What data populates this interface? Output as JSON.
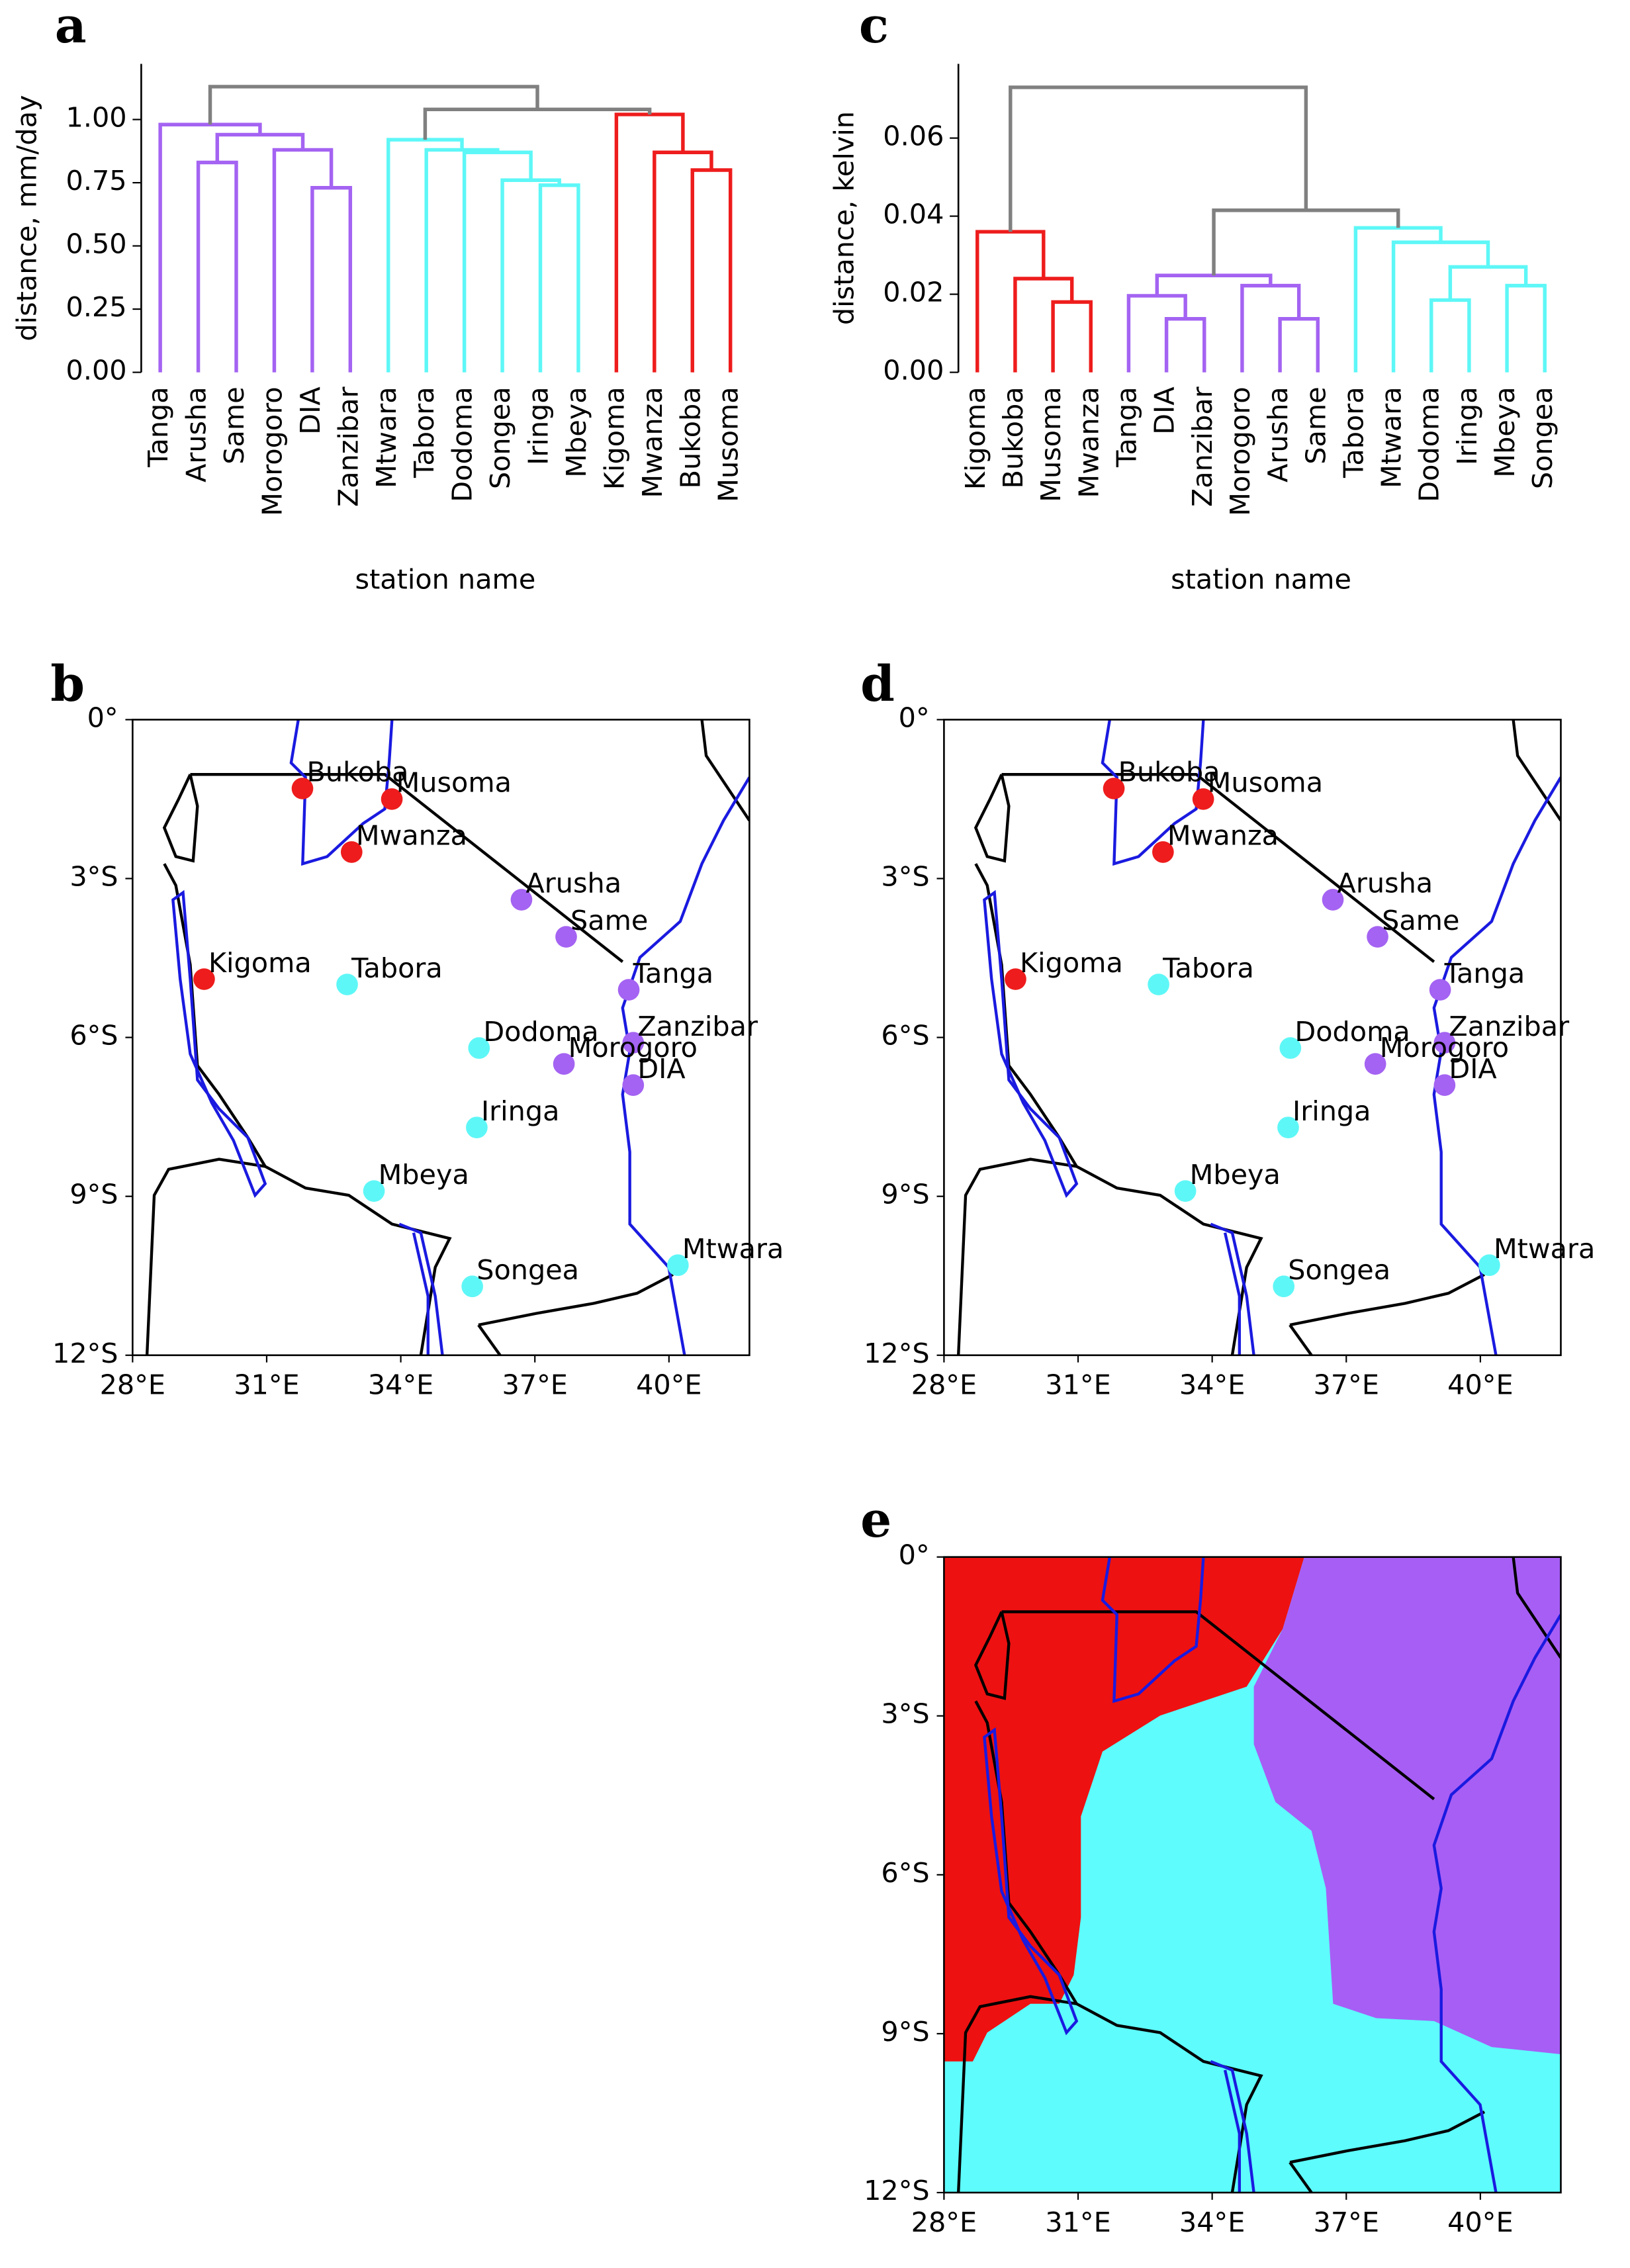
{
  "chart_data": [
    {
      "type": "dendrogram",
      "panel_label": "a",
      "ylabel": "distance, mm/day",
      "xlabel": "station name",
      "leaves": [
        "Tanga",
        "Arusha",
        "Same",
        "Morogoro",
        "DIA",
        "Zanzibar",
        "Mtwara",
        "Tabora",
        "Dodoma",
        "Songea",
        "Iringa",
        "Mbeya",
        "Kigoma",
        "Mwanza",
        "Bukoba",
        "Musoma"
      ],
      "merges": [
        {
          "children": [
            1,
            2
          ],
          "height": 0.83,
          "color": "#a463f2"
        },
        {
          "children": [
            4,
            5
          ],
          "height": 0.73,
          "color": "#a463f2"
        },
        {
          "children": [
            3,
            17
          ],
          "height": 0.88,
          "color": "#a463f2"
        },
        {
          "children": [
            16,
            18
          ],
          "height": 0.94,
          "color": "#a463f2"
        },
        {
          "children": [
            0,
            19
          ],
          "height": 0.98,
          "color": "#a463f2"
        },
        {
          "children": [
            10,
            11
          ],
          "height": 0.74,
          "color": "#5ef7f7"
        },
        {
          "children": [
            9,
            21
          ],
          "height": 0.76,
          "color": "#5ef7f7"
        },
        {
          "children": [
            8,
            22
          ],
          "height": 0.87,
          "color": "#5ef7f7"
        },
        {
          "children": [
            7,
            23
          ],
          "height": 0.88,
          "color": "#5ef7f7"
        },
        {
          "children": [
            6,
            24
          ],
          "height": 0.92,
          "color": "#5ef7f7"
        },
        {
          "children": [
            14,
            15
          ],
          "height": 0.8,
          "color": "#ee1c1c"
        },
        {
          "children": [
            13,
            26
          ],
          "height": 0.87,
          "color": "#ee1c1c"
        },
        {
          "children": [
            12,
            27
          ],
          "height": 1.02,
          "color": "#ee1c1c"
        },
        {
          "children": [
            25,
            28
          ],
          "height": 1.04,
          "color": "#808080"
        },
        {
          "children": [
            20,
            29
          ],
          "height": 1.13,
          "color": "#808080"
        }
      ],
      "ylim": [
        0,
        1.22
      ],
      "yticks": [
        {
          "value": 0,
          "label": "0.00"
        },
        {
          "value": 0.25,
          "label": "0.25"
        },
        {
          "value": 0.5,
          "label": "0.50"
        },
        {
          "value": 0.75,
          "label": "0.75"
        },
        {
          "value": 1,
          "label": "1.00"
        }
      ]
    },
    {
      "type": "station_map",
      "panel_label": "b",
      "xlim": [
        28,
        41.8
      ],
      "ylim": [
        -12,
        0
      ],
      "xticks": [
        {
          "value": 28,
          "label": "28°E"
        },
        {
          "value": 31,
          "label": "31°E"
        },
        {
          "value": 34,
          "label": "34°E"
        },
        {
          "value": 37,
          "label": "37°E"
        },
        {
          "value": 40,
          "label": "40°E"
        }
      ],
      "yticks": [
        {
          "value": 0,
          "label": "0°"
        },
        {
          "value": -3,
          "label": "3°S"
        },
        {
          "value": -6,
          "label": "6°S"
        },
        {
          "value": -9,
          "label": "9°S"
        },
        {
          "value": -12,
          "label": "12°S"
        }
      ],
      "stations": [
        {
          "name": "Bukoba",
          "lon": 31.8,
          "lat": -1.3,
          "color": "#ee1c1c"
        },
        {
          "name": "Musoma",
          "lon": 33.8,
          "lat": -1.5,
          "color": "#ee1c1c"
        },
        {
          "name": "Mwanza",
          "lon": 32.9,
          "lat": -2.5,
          "color": "#ee1c1c"
        },
        {
          "name": "Arusha",
          "lon": 36.7,
          "lat": -3.4,
          "color": "#a463f2"
        },
        {
          "name": "Same",
          "lon": 37.7,
          "lat": -4.1,
          "color": "#a463f2"
        },
        {
          "name": "Tanga",
          "lon": 39.1,
          "lat": -5.1,
          "color": "#a463f2"
        },
        {
          "name": "Kigoma",
          "lon": 29.6,
          "lat": -4.9,
          "color": "#ee1c1c"
        },
        {
          "name": "Tabora",
          "lon": 32.8,
          "lat": -5.0,
          "color": "#5ef7f7"
        },
        {
          "name": "Dodoma",
          "lon": 35.75,
          "lat": -6.2,
          "color": "#5ef7f7"
        },
        {
          "name": "Zanzibar",
          "lon": 39.2,
          "lat": -6.1,
          "color": "#a463f2"
        },
        {
          "name": "Morogoro",
          "lon": 37.65,
          "lat": -6.5,
          "color": "#a463f2"
        },
        {
          "name": "DIA",
          "lon": 39.2,
          "lat": -6.9,
          "color": "#a463f2"
        },
        {
          "name": "Iringa",
          "lon": 35.7,
          "lat": -7.7,
          "color": "#5ef7f7"
        },
        {
          "name": "Mbeya",
          "lon": 33.4,
          "lat": -8.9,
          "color": "#5ef7f7"
        },
        {
          "name": "Songea",
          "lon": 35.6,
          "lat": -10.7,
          "color": "#5ef7f7"
        },
        {
          "name": "Mtwara",
          "lon": 40.2,
          "lat": -10.3,
          "color": "#5ef7f7"
        }
      ]
    },
    {
      "type": "dendrogram",
      "panel_label": "c",
      "ylabel": "distance, kelvin",
      "xlabel": "station name",
      "leaves": [
        "Kigoma",
        "Bukoba",
        "Musoma",
        "Mwanza",
        "Tanga",
        "DIA",
        "Zanzibar",
        "Morogoro",
        "Arusha",
        "Same",
        "Tabora",
        "Mtwara",
        "Dodoma",
        "Iringa",
        "Mbeya",
        "Songea"
      ],
      "merges": [
        {
          "children": [
            2,
            3
          ],
          "height": 0.018,
          "color": "#ee1c1c"
        },
        {
          "children": [
            1,
            16
          ],
          "height": 0.024,
          "color": "#ee1c1c"
        },
        {
          "children": [
            0,
            17
          ],
          "height": 0.036,
          "color": "#ee1c1c"
        },
        {
          "children": [
            5,
            6
          ],
          "height": 0.0137,
          "color": "#a463f2"
        },
        {
          "children": [
            4,
            19
          ],
          "height": 0.0196,
          "color": "#a463f2"
        },
        {
          "children": [
            8,
            9
          ],
          "height": 0.0137,
          "color": "#a463f2"
        },
        {
          "children": [
            7,
            21
          ],
          "height": 0.0222,
          "color": "#a463f2"
        },
        {
          "children": [
            20,
            22
          ],
          "height": 0.0248,
          "color": "#a463f2"
        },
        {
          "children": [
            12,
            13
          ],
          "height": 0.0185,
          "color": "#5ef7f7"
        },
        {
          "children": [
            14,
            15
          ],
          "height": 0.0222,
          "color": "#5ef7f7"
        },
        {
          "children": [
            24,
            25
          ],
          "height": 0.027,
          "color": "#5ef7f7"
        },
        {
          "children": [
            11,
            26
          ],
          "height": 0.0333,
          "color": "#5ef7f7"
        },
        {
          "children": [
            10,
            27
          ],
          "height": 0.037,
          "color": "#5ef7f7"
        },
        {
          "children": [
            23,
            28
          ],
          "height": 0.0415,
          "color": "#808080"
        },
        {
          "children": [
            18,
            29
          ],
          "height": 0.073,
          "color": "#808080"
        }
      ],
      "ylim": [
        0,
        0.079
      ],
      "yticks": [
        {
          "value": 0,
          "label": "0.00"
        },
        {
          "value": 0.02,
          "label": "0.02"
        },
        {
          "value": 0.04,
          "label": "0.04"
        },
        {
          "value": 0.06,
          "label": "0.06"
        }
      ]
    },
    {
      "type": "station_map",
      "panel_label": "d",
      "xlim": [
        28,
        41.8
      ],
      "ylim": [
        -12,
        0
      ],
      "xticks": [
        {
          "value": 28,
          "label": "28°E"
        },
        {
          "value": 31,
          "label": "31°E"
        },
        {
          "value": 34,
          "label": "34°E"
        },
        {
          "value": 37,
          "label": "37°E"
        },
        {
          "value": 40,
          "label": "40°E"
        }
      ],
      "yticks": [
        {
          "value": 0,
          "label": "0°"
        },
        {
          "value": -3,
          "label": "3°S"
        },
        {
          "value": -6,
          "label": "6°S"
        },
        {
          "value": -9,
          "label": "9°S"
        },
        {
          "value": -12,
          "label": "12°S"
        }
      ],
      "stations": [
        {
          "name": "Bukoba",
          "lon": 31.8,
          "lat": -1.3,
          "color": "#ee1c1c"
        },
        {
          "name": "Musoma",
          "lon": 33.8,
          "lat": -1.5,
          "color": "#ee1c1c"
        },
        {
          "name": "Mwanza",
          "lon": 32.9,
          "lat": -2.5,
          "color": "#ee1c1c"
        },
        {
          "name": "Arusha",
          "lon": 36.7,
          "lat": -3.4,
          "color": "#a463f2"
        },
        {
          "name": "Same",
          "lon": 37.7,
          "lat": -4.1,
          "color": "#a463f2"
        },
        {
          "name": "Tanga",
          "lon": 39.1,
          "lat": -5.1,
          "color": "#a463f2"
        },
        {
          "name": "Kigoma",
          "lon": 29.6,
          "lat": -4.9,
          "color": "#ee1c1c"
        },
        {
          "name": "Tabora",
          "lon": 32.8,
          "lat": -5.0,
          "color": "#5ef7f7"
        },
        {
          "name": "Dodoma",
          "lon": 35.75,
          "lat": -6.2,
          "color": "#5ef7f7"
        },
        {
          "name": "Zanzibar",
          "lon": 39.2,
          "lat": -6.1,
          "color": "#a463f2"
        },
        {
          "name": "Morogoro",
          "lon": 37.65,
          "lat": -6.5,
          "color": "#a463f2"
        },
        {
          "name": "DIA",
          "lon": 39.2,
          "lat": -6.9,
          "color": "#a463f2"
        },
        {
          "name": "Iringa",
          "lon": 35.7,
          "lat": -7.7,
          "color": "#5ef7f7"
        },
        {
          "name": "Mbeya",
          "lon": 33.4,
          "lat": -8.9,
          "color": "#5ef7f7"
        },
        {
          "name": "Songea",
          "lon": 35.6,
          "lat": -10.7,
          "color": "#5ef7f7"
        },
        {
          "name": "Mtwara",
          "lon": 40.2,
          "lat": -10.3,
          "color": "#5ef7f7"
        }
      ]
    },
    {
      "type": "cluster_map",
      "panel_label": "e",
      "xlim": [
        28,
        41.8
      ],
      "ylim": [
        -12,
        0
      ],
      "xticks": [
        {
          "value": 28,
          "label": "28°E"
        },
        {
          "value": 31,
          "label": "31°E"
        },
        {
          "value": 34,
          "label": "34°E"
        },
        {
          "value": 37,
          "label": "37°E"
        },
        {
          "value": 40,
          "label": "40°E"
        }
      ],
      "yticks": [
        {
          "value": 0,
          "label": "0°"
        },
        {
          "value": -3,
          "label": "3°S"
        },
        {
          "value": -6,
          "label": "6°S"
        },
        {
          "value": -9,
          "label": "9°S"
        },
        {
          "value": -12,
          "label": "12°S"
        }
      ],
      "region_colors": [
        "#5efcfc",
        "#ee1111",
        "#a75ef5"
      ]
    }
  ]
}
